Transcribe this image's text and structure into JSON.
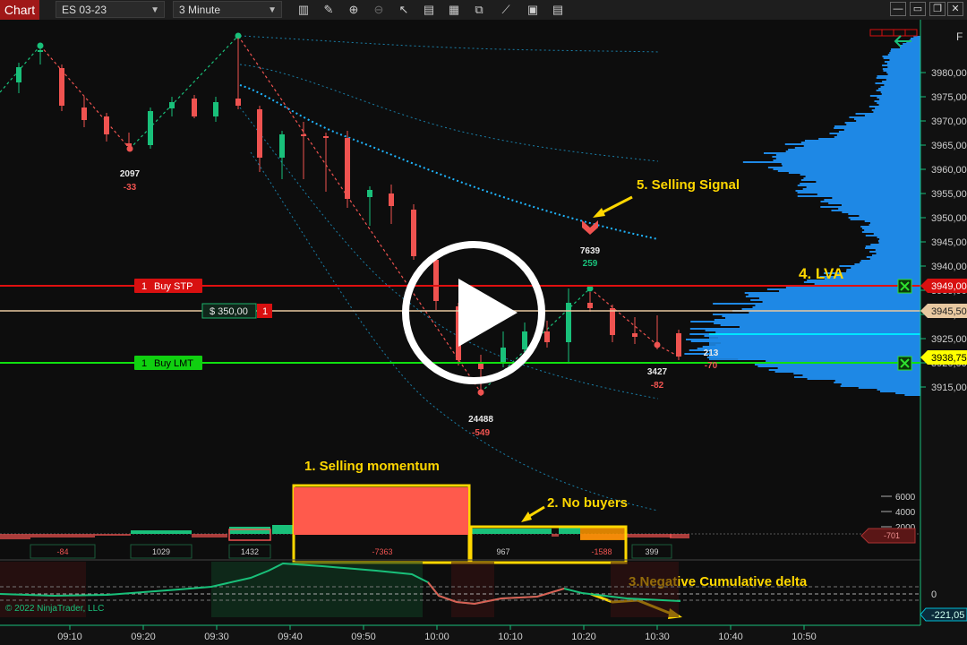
{
  "toolbar": {
    "title": "Chart",
    "instrument": "ES 03-23",
    "interval": "3 Minute",
    "icons": [
      "bar-type-icon",
      "draw-pencil-icon",
      "zoom-in-icon",
      "zoom-out-icon",
      "pointer-icon",
      "data-box-icon",
      "templates-icon",
      "indicators-icon",
      "strategies-icon",
      "properties-icon",
      "properties-grid-icon"
    ],
    "window_buttons": [
      "minimize",
      "maximize",
      "close"
    ]
  },
  "price_axis": {
    "ticks": [
      "3980,00",
      "3975,00",
      "3970,00",
      "3965,00",
      "3960,00",
      "3955,00",
      "3950,00",
      "3945,00",
      "3940,00",
      "3935,00",
      "3930,00",
      "3925,00",
      "3920,00",
      "3915,00"
    ],
    "right_edge_letter": "F"
  },
  "orders": {
    "stop": {
      "qty": "1",
      "label": "Buy STP",
      "price_label": "3949,00",
      "color": "#e01010"
    },
    "position": {
      "pnl": "$ 350,00",
      "qty": "1",
      "price_label": "3945,50",
      "color": "#e8c8a0"
    },
    "limit": {
      "qty": "1",
      "label": "Buy LMT",
      "price_label": "3938,75",
      "color": "#10e010"
    }
  },
  "swing_labels": [
    {
      "vol": "2097",
      "delta": "-33"
    },
    {
      "vol": "24488",
      "delta": "-549"
    },
    {
      "vol": "7639",
      "delta": "259"
    },
    {
      "vol": "3427",
      "delta": "-82"
    },
    {
      "vol": "213",
      "delta": "-70"
    }
  ],
  "annotations": {
    "a1": "1. Selling momentum",
    "a2": "2. No buyers",
    "a3": "3.Negative Cumulative delta",
    "a4": "4. LVA",
    "a5": "5. Selling Signal"
  },
  "delta_panel": {
    "scale": [
      "6000",
      "4000",
      "2000"
    ],
    "values": [
      "-84",
      "1029",
      "1432",
      "-7363",
      "967",
      "-1588",
      "399"
    ],
    "current_label": "-701"
  },
  "cum_delta_panel": {
    "zero_label": "0",
    "current_label": "-221,05"
  },
  "time_axis": [
    "09:10",
    "09:20",
    "09:30",
    "09:40",
    "09:50",
    "10:00",
    "10:10",
    "10:20",
    "10:30",
    "10:40",
    "10:50"
  ],
  "copyright": "© 2022 NinjaTrader, LLC",
  "colors": {
    "bull": "#19c07a",
    "bear": "#ef5350",
    "profile": "#1e88e5",
    "annotation": "#ffd700",
    "current_price": "#ffff00"
  }
}
